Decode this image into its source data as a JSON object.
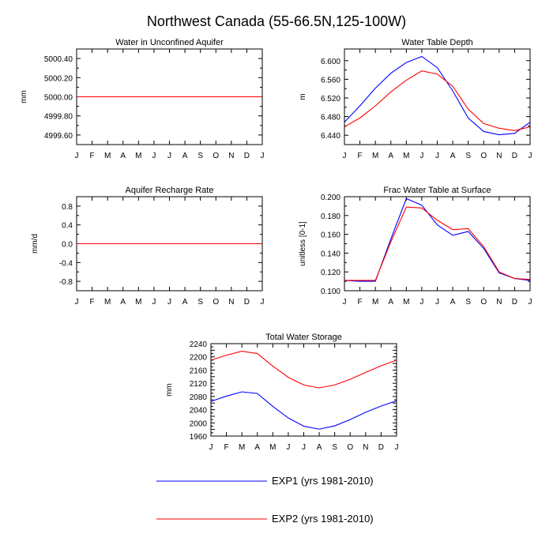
{
  "figure": {
    "title": "Northwest Canada (55-66.5N,125-100W)"
  },
  "legend": [
    {
      "label": "EXP1 (yrs 1981-2010)",
      "color": "#0000ff"
    },
    {
      "label": "EXP2 (yrs 1981-2010)",
      "color": "#ff0000"
    }
  ],
  "chart_data": [
    {
      "type": "line",
      "title": "Water in Unconfined Aquifer",
      "ylabel": "mm",
      "xlabel": "",
      "categories": [
        "J",
        "F",
        "M",
        "A",
        "M",
        "J",
        "J",
        "A",
        "S",
        "O",
        "N",
        "D",
        "J"
      ],
      "ylim": [
        4999.5,
        5000.5
      ],
      "yticks": [
        4999.6,
        4999.8,
        5000.0,
        5000.2,
        5000.4
      ],
      "ytick_labels": [
        "4999.60",
        "4999.80",
        "5000.00",
        "5000.20",
        "5000.40"
      ],
      "series": [
        {
          "name": "EXP1",
          "color": "#0000ff",
          "values": [
            5000,
            5000,
            5000,
            5000,
            5000,
            5000,
            5000,
            5000,
            5000,
            5000,
            5000,
            5000,
            5000
          ]
        },
        {
          "name": "EXP2",
          "color": "#ff0000",
          "values": [
            5000,
            5000,
            5000,
            5000,
            5000,
            5000,
            5000,
            5000,
            5000,
            5000,
            5000,
            5000,
            5000
          ]
        }
      ]
    },
    {
      "type": "line",
      "title": "Water Table Depth",
      "ylabel": "m",
      "xlabel": "",
      "categories": [
        "J",
        "F",
        "M",
        "A",
        "M",
        "J",
        "J",
        "A",
        "S",
        "O",
        "N",
        "D",
        "J"
      ],
      "ylim": [
        6.42,
        6.625
      ],
      "yticks": [
        6.44,
        6.48,
        6.52,
        6.56,
        6.6
      ],
      "ytick_labels": [
        "6.440",
        "6.480",
        "6.520",
        "6.560",
        "6.600"
      ],
      "series": [
        {
          "name": "EXP1",
          "color": "#0000ff",
          "values": [
            6.468,
            6.503,
            6.541,
            6.573,
            6.596,
            6.609,
            6.585,
            6.535,
            6.477,
            6.448,
            6.441,
            6.444,
            6.468
          ]
        },
        {
          "name": "EXP2",
          "color": "#ff0000",
          "values": [
            6.458,
            6.477,
            6.503,
            6.533,
            6.558,
            6.578,
            6.571,
            6.545,
            6.496,
            6.465,
            6.455,
            6.45,
            6.458
          ]
        }
      ]
    },
    {
      "type": "line",
      "title": "Aquifer Recharge Rate",
      "ylabel": "mm/d",
      "xlabel": "",
      "categories": [
        "J",
        "F",
        "M",
        "A",
        "M",
        "J",
        "J",
        "A",
        "S",
        "O",
        "N",
        "D",
        "J"
      ],
      "ylim": [
        -1.0,
        1.0
      ],
      "yticks": [
        -0.8,
        -0.4,
        0.0,
        0.4,
        0.8
      ],
      "ytick_labels": [
        "-0.8",
        "-0.4",
        "0.0",
        "0.4",
        "0.8"
      ],
      "series": [
        {
          "name": "EXP1",
          "color": "#0000ff",
          "values": [
            0,
            0,
            0,
            0,
            0,
            0,
            0,
            0,
            0,
            0,
            0,
            0,
            0
          ]
        },
        {
          "name": "EXP2",
          "color": "#ff0000",
          "values": [
            0,
            0,
            0,
            0,
            0,
            0,
            0,
            0,
            0,
            0,
            0,
            0,
            0
          ]
        }
      ]
    },
    {
      "type": "line",
      "title": "Frac Water Table at Surface",
      "ylabel": "unitless [0-1]",
      "xlabel": "",
      "categories": [
        "J",
        "F",
        "M",
        "A",
        "M",
        "J",
        "J",
        "A",
        "S",
        "O",
        "N",
        "D",
        "J"
      ],
      "ylim": [
        0.1,
        0.2
      ],
      "yticks": [
        0.1,
        0.12,
        0.14,
        0.16,
        0.18,
        0.2
      ],
      "ytick_labels": [
        "0.100",
        "0.120",
        "0.140",
        "0.160",
        "0.180",
        "0.200"
      ],
      "series": [
        {
          "name": "EXP1",
          "color": "#0000ff",
          "values": [
            0.111,
            0.11,
            0.11,
            0.155,
            0.198,
            0.191,
            0.17,
            0.159,
            0.163,
            0.145,
            0.119,
            0.113,
            0.111
          ]
        },
        {
          "name": "EXP2",
          "color": "#ff0000",
          "values": [
            0.111,
            0.111,
            0.111,
            0.152,
            0.189,
            0.188,
            0.175,
            0.165,
            0.166,
            0.147,
            0.12,
            0.113,
            0.112
          ]
        }
      ]
    },
    {
      "type": "line",
      "title": "Total Water Storage",
      "ylabel": "mm",
      "xlabel": "",
      "categories": [
        "J",
        "F",
        "M",
        "A",
        "M",
        "J",
        "J",
        "A",
        "S",
        "O",
        "N",
        "D",
        "J"
      ],
      "ylim": [
        1960,
        2240
      ],
      "yticks": [
        1960,
        1980,
        2000,
        2020,
        2040,
        2060,
        2080,
        2100,
        2120,
        2140,
        2160,
        2180,
        2200,
        2220,
        2240
      ],
      "ytick_labels": [
        "1960",
        "",
        "2000",
        "",
        "2040",
        "",
        "2080",
        "",
        "2120",
        "",
        "2160",
        "",
        "2200",
        "",
        "2240"
      ],
      "ytick_labels_full": [
        "1960",
        "1980",
        "2000",
        "2020",
        "2040",
        "2060",
        "2080",
        "2100",
        "2120",
        "2140",
        "2160",
        "2180",
        "2200",
        "2220",
        "2240"
      ],
      "series": [
        {
          "name": "EXP1",
          "color": "#0000ff",
          "values": [
            2065,
            2081,
            2094,
            2089,
            2050,
            2015,
            1990,
            1981,
            1991,
            2010,
            2032,
            2051,
            2067
          ]
        },
        {
          "name": "EXP2",
          "color": "#ff0000",
          "values": [
            2190,
            2205,
            2217,
            2210,
            2172,
            2138,
            2115,
            2106,
            2115,
            2132,
            2153,
            2173,
            2190
          ]
        }
      ]
    }
  ]
}
